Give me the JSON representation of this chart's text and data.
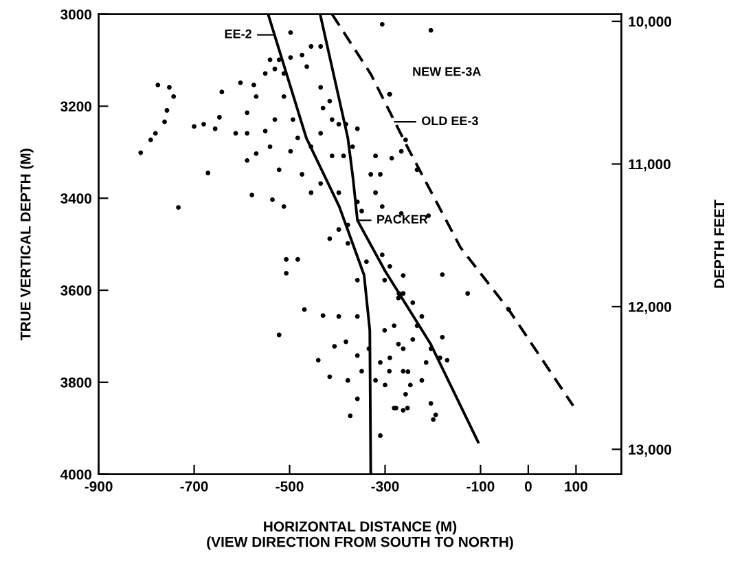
{
  "chart_data": {
    "type": "scatter",
    "xlabel": "HORIZONTAL DISTANCE (M)\n(VIEW DIRECTION FROM SOUTH TO NORTH)",
    "ylabel": "TRUE VERTICAL DEPTH (M)",
    "y2label": "DEPTH FEET",
    "xlim": [
      -900,
      195
    ],
    "xticks": [
      -900,
      -700,
      -500,
      -300,
      -100,
      0,
      100
    ],
    "ylim": [
      4000,
      3000
    ],
    "yticks": [
      3000,
      3200,
      3400,
      3600,
      3800,
      4000
    ],
    "y2lim": [
      13175,
      9950
    ],
    "y2ticks": [
      {
        "value": 10000,
        "label": "10,000"
      },
      {
        "value": 11000,
        "label": "11,000"
      },
      {
        "value": 12000,
        "label": "12,000"
      },
      {
        "value": 13000,
        "label": "13,000"
      }
    ],
    "grid": false,
    "legend": false,
    "series": [
      {
        "color": "#000000",
        "marker": "circle",
        "x": [
          -776,
          -752,
          -743,
          -757,
          -762,
          -781,
          -791,
          -812,
          -733,
          -671,
          -700,
          -680,
          -656,
          -647,
          -642,
          -603,
          -575,
          -570,
          -589,
          -613,
          -589,
          -551,
          -531,
          -541,
          -570,
          -589,
          -579,
          -536,
          -512,
          -522,
          -498,
          -483,
          -493,
          -512,
          -531,
          -522,
          -498,
          -474,
          -455,
          -435,
          -498,
          -464,
          -435,
          -416,
          -430,
          -411,
          -435,
          -397,
          -382,
          -358,
          -368,
          -387,
          -411,
          -455,
          -474,
          -455,
          -435,
          -397,
          -358,
          -330,
          -310,
          -320,
          -306,
          -349,
          -378,
          -397,
          -320,
          -306,
          -291,
          -541,
          -512,
          -551,
          -204,
          -290,
          -257,
          -266,
          -286,
          -233,
          -266,
          -209,
          -507,
          -507,
          -483,
          -469,
          -430,
          -522,
          -406,
          -440,
          -416,
          -382,
          -378,
          -373,
          -358,
          -334,
          -310,
          -301,
          -306,
          -272,
          -277,
          -253,
          -310,
          -358,
          -397,
          -358,
          -339,
          -416,
          -378,
          -358,
          -301,
          -262,
          -262,
          -291,
          -272,
          -349,
          -320,
          -290,
          -262,
          -271,
          -242,
          -281,
          -262,
          -242,
          -204,
          -185,
          -170,
          -180,
          -180,
          -127,
          -41,
          -214,
          -252,
          -223,
          -257,
          -281,
          -262,
          -204,
          -194,
          -199,
          -300,
          -290,
          -233,
          -223,
          -247
        ],
        "values": [
          3154,
          3159,
          3179,
          3209,
          3234,
          3259,
          3273,
          3301,
          3420,
          3345,
          3244,
          3239,
          3249,
          3224,
          3169,
          3149,
          3154,
          3179,
          3214,
          3259,
          3259,
          3254,
          3229,
          3288,
          3303,
          3318,
          3393,
          3403,
          3418,
          3338,
          3298,
          3269,
          3229,
          3179,
          3119,
          3099,
          3094,
          3089,
          3070,
          3070,
          3040,
          3114,
          3159,
          3189,
          3204,
          3229,
          3259,
          3239,
          3239,
          3249,
          3288,
          3308,
          3308,
          3288,
          3348,
          3388,
          3368,
          3388,
          3408,
          3348,
          3348,
          3388,
          3418,
          3428,
          3458,
          3468,
          3308,
          3022,
          3174,
          3099,
          3129,
          3129,
          3035,
          3174,
          3273,
          3298,
          3313,
          3338,
          3433,
          3438,
          3533,
          3563,
          3533,
          3642,
          3655,
          3697,
          3722,
          3752,
          3788,
          3712,
          3796,
          3873,
          3742,
          3727,
          3757,
          3687,
          3523,
          3617,
          3856,
          3856,
          3916,
          3836,
          3657,
          3657,
          3538,
          3488,
          3498,
          3578,
          3578,
          3607,
          3776,
          3776,
          3717,
          3776,
          3796,
          3548,
          3568,
          3607,
          3627,
          3677,
          3727,
          3707,
          3727,
          3747,
          3752,
          3702,
          3566,
          3607,
          3642,
          3757,
          3777,
          3796,
          3826,
          3856,
          3861,
          3846,
          3871,
          3881,
          3806,
          3747,
          3677,
          3657,
          3806
        ]
      },
      {
        "type": "line",
        "color": "#000000",
        "line_style": "solid",
        "x": [
          -545,
          -465,
          -396,
          -344,
          -332,
          -330
        ],
        "values": [
          3000,
          3269,
          3418,
          3567,
          3687,
          4000
        ]
      },
      {
        "type": "line",
        "color": "#000000",
        "line_style": "solid",
        "x": [
          -436,
          -378,
          -367,
          -358,
          -300,
          -205,
          -105
        ],
        "values": [
          3000,
          3269,
          3358,
          3448,
          3558,
          3716,
          3930
        ]
      },
      {
        "type": "line",
        "color": "#000000",
        "line_style": "dashed",
        "x": [
          -411,
          -330,
          -250,
          -142,
          -41,
          94
        ],
        "values": [
          3000,
          3130,
          3295,
          3507,
          3642,
          3851
        ]
      }
    ],
    "annotations": [
      {
        "text": "EE-2",
        "x": -531,
        "y": 3045
      },
      "NEW EE-3A",
      {
        "text": "OLD EE-3",
        "x": -280,
        "y": 3234
      },
      {
        "text": "PACKER",
        "x": -358,
        "y": 3448
      }
    ]
  }
}
